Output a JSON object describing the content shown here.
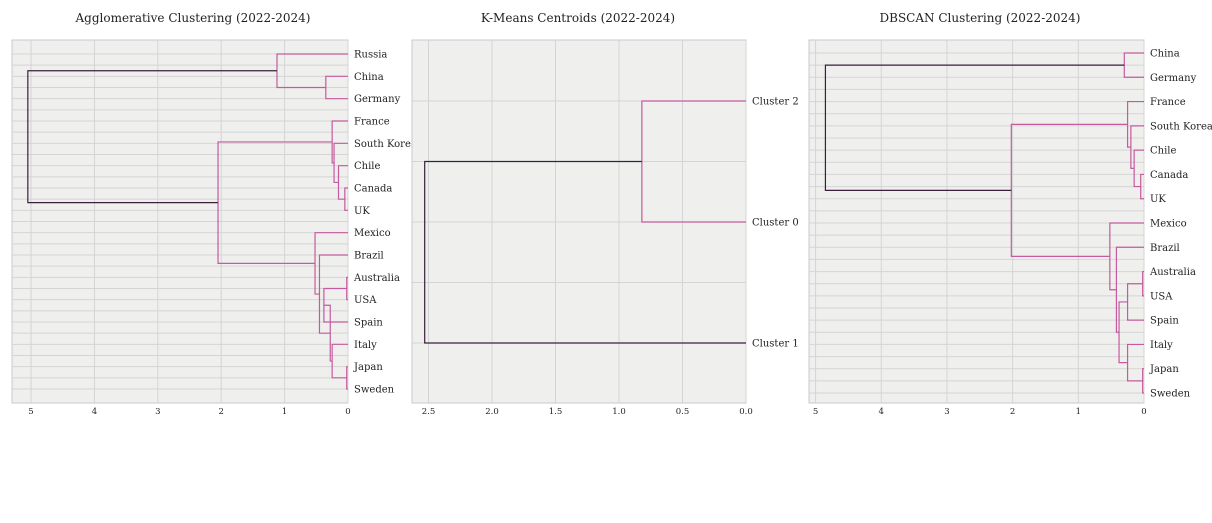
{
  "colors": {
    "link_cluster": "#c55a9e",
    "link_top": "#3b1f3d",
    "panel_bg": "#eff0ee",
    "grid": "#d4d4d4"
  },
  "chart_data": [
    {
      "type": "dendrogram",
      "orientation": "left",
      "title": "Agglomerative Clustering (2022-2024)",
      "xlim": [
        5.3,
        0
      ],
      "xticks": [
        5,
        4,
        3,
        2,
        1,
        0
      ],
      "grid": true,
      "leaves": [
        "Russia",
        "China",
        "Germany",
        "France",
        "South Korea",
        "Chile",
        "Canada",
        "UK",
        "Mexico",
        "Brazil",
        "Australia",
        "USA",
        "Spain",
        "Italy",
        "Japan",
        "Sweden"
      ],
      "merges": [
        {
          "a": "Australia",
          "b": "USA",
          "height": 0.02,
          "color": "cluster"
        },
        {
          "a": "Japan",
          "b": "Sweden",
          "height": 0.02,
          "color": "cluster"
        },
        {
          "a": "Canada",
          "b": "UK",
          "height": 0.05,
          "color": "cluster"
        },
        {
          "a": "Chile",
          "b": 2,
          "height": 0.15,
          "color": "cluster"
        },
        {
          "a": "Italy",
          "b": 1,
          "height": 0.25,
          "color": "cluster"
        },
        {
          "a": "South Korea",
          "b": 3,
          "height": 0.22,
          "color": "cluster"
        },
        {
          "a": "France",
          "b": 5,
          "height": 0.25,
          "color": "cluster"
        },
        {
          "a": 0,
          "b": "Spain",
          "height": 0.38,
          "color": "cluster"
        },
        {
          "a": 7,
          "b": 4,
          "height": 0.28,
          "color": "cluster"
        },
        {
          "a": "Brazil",
          "b": 8,
          "height": 0.45,
          "color": "cluster"
        },
        {
          "a": "Mexico",
          "b": 9,
          "height": 0.52,
          "color": "cluster"
        },
        {
          "a": 6,
          "b": 10,
          "height": 2.05,
          "color": "cluster"
        },
        {
          "a": "China",
          "b": "Germany",
          "height": 0.35,
          "color": "cluster"
        },
        {
          "a": "Russia",
          "b": 12,
          "height": 1.12,
          "color": "cluster"
        },
        {
          "a": 13,
          "b": 11,
          "height": 5.05,
          "color": "top"
        }
      ]
    },
    {
      "type": "dendrogram",
      "orientation": "left",
      "title": "K-Means Centroids (2022-2024)",
      "xlim": [
        2.63,
        0
      ],
      "xticks": [
        2.5,
        2.0,
        1.5,
        1.0,
        0.5,
        0.0
      ],
      "xtick_labels": [
        "2.5",
        "2.0",
        "1.5",
        "1.0",
        "0.5",
        "0.0"
      ],
      "grid": true,
      "leaves": [
        "Cluster 2",
        "Cluster 0",
        "Cluster 1"
      ],
      "merges": [
        {
          "a": "Cluster 2",
          "b": "Cluster 0",
          "height": 0.82,
          "color": "cluster"
        },
        {
          "a": 0,
          "b": "Cluster 1",
          "height": 2.53,
          "color": "top"
        }
      ]
    },
    {
      "type": "dendrogram",
      "orientation": "left",
      "title": "DBSCAN Clustering (2022-2024)",
      "xlim": [
        5.1,
        0
      ],
      "xticks": [
        5,
        4,
        3,
        2,
        1,
        0
      ],
      "grid": true,
      "leaves": [
        "China",
        "Germany",
        "France",
        "South Korea",
        "Chile",
        "Canada",
        "UK",
        "Mexico",
        "Brazil",
        "Australia",
        "USA",
        "Spain",
        "Italy",
        "Japan",
        "Sweden"
      ],
      "merges": [
        {
          "a": "China",
          "b": "Germany",
          "height": 0.3,
          "color": "cluster"
        },
        {
          "a": "Canada",
          "b": "UK",
          "height": 0.05,
          "color": "cluster"
        },
        {
          "a": "Chile",
          "b": 1,
          "height": 0.15,
          "color": "cluster"
        },
        {
          "a": "South Korea",
          "b": 2,
          "height": 0.2,
          "color": "cluster"
        },
        {
          "a": "France",
          "b": 3,
          "height": 0.25,
          "color": "cluster"
        },
        {
          "a": "Australia",
          "b": "USA",
          "height": 0.02,
          "color": "cluster"
        },
        {
          "a": "Japan",
          "b": "Sweden",
          "height": 0.02,
          "color": "cluster"
        },
        {
          "a": 5,
          "b": "Spain",
          "height": 0.25,
          "color": "cluster"
        },
        {
          "a": "Italy",
          "b": 6,
          "height": 0.25,
          "color": "cluster"
        },
        {
          "a": 7,
          "b": 8,
          "height": 0.38,
          "color": "cluster"
        },
        {
          "a": "Brazil",
          "b": 9,
          "height": 0.42,
          "color": "cluster"
        },
        {
          "a": "Mexico",
          "b": 10,
          "height": 0.52,
          "color": "cluster"
        },
        {
          "a": 4,
          "b": 11,
          "height": 2.02,
          "color": "cluster"
        },
        {
          "a": 0,
          "b": 12,
          "height": 4.85,
          "color": "top"
        }
      ]
    }
  ]
}
